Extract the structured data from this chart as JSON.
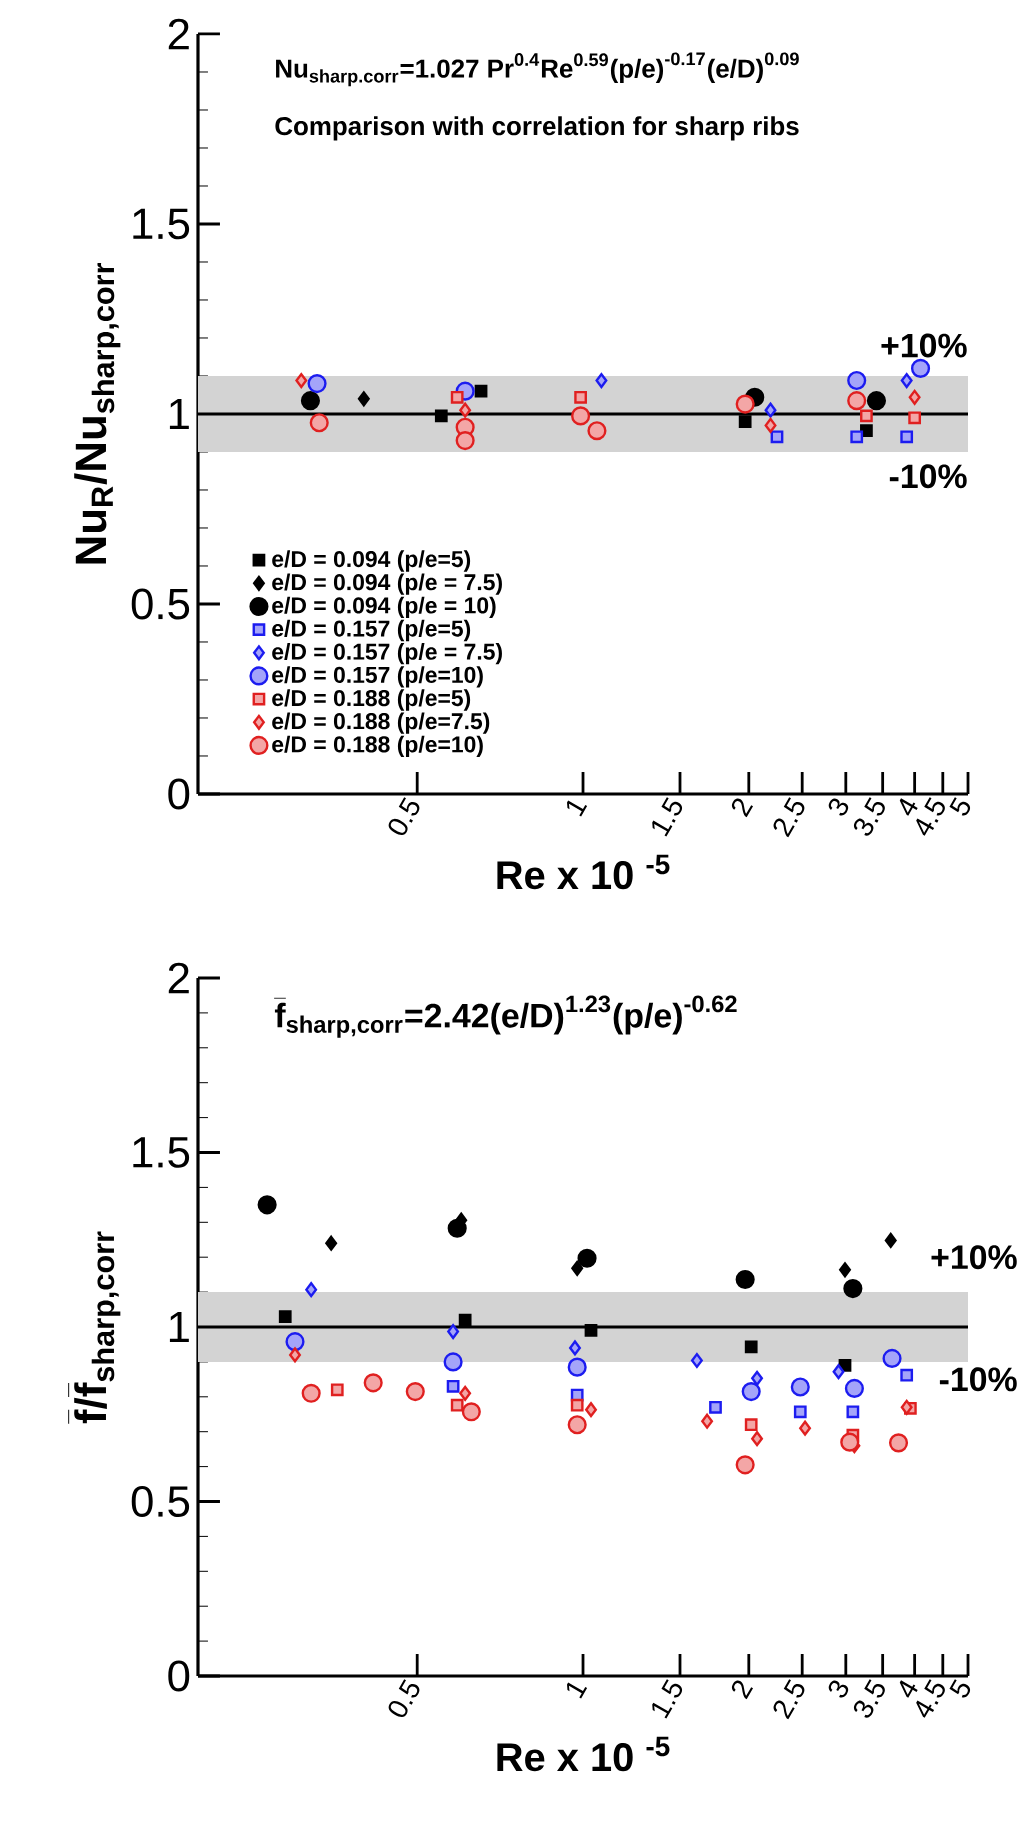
{
  "chart_data": [
    {
      "type": "scatter",
      "title": "\\textbf{Nu}_{\\textbf{sharp.corr}}\\textbf{=1.027 Pr}^{\\textbf{0.4}}\\textbf{Re}^{\\textbf{0.59}}\\textbf{(p/e)}^{\\textbf{-0.17}}\\textbf{(e/D)}^{\\textbf{0.09}}",
      "subtitle": "Comparison with correlation for sharp ribs",
      "xlabel": "Re x 10 $^{-5}$",
      "ylabel": "\\textbf{Nu}_{\\textbf{R}}\\textbf{/Nu}_{\\textbf{sharp,corr}}",
      "log": "x",
      "xlim": [
        0.2,
        5
      ],
      "ylim": [
        0,
        2
      ],
      "xticks": [
        0.5,
        1,
        1.5,
        2,
        2.5,
        3,
        3.5,
        4,
        4.5,
        5
      ],
      "yticks": [
        0,
        0.5,
        1,
        1.5,
        2
      ],
      "legend": "bottom left",
      "bands": [
        {
          "axis": "y",
          "from": 0.9,
          "to": 1.1,
          "color": "#d3d3d3"
        }
      ],
      "ref_lines": [
        {
          "axis": "y",
          "value": 1,
          "color": "#000000"
        }
      ],
      "annotations": [
        "+10%",
        "-10%"
      ],
      "series": [
        {
          "name": "e/D = 0.094 (p/e=5)",
          "color": "#000000",
          "marker": "square",
          "x": [
            0.553,
            0.653,
            1.97,
            3.27
          ],
          "values": [
            0.995,
            1.06,
            0.98,
            0.956
          ]
        },
        {
          "name": "e/D = 0.094 (p/e = 7.5)",
          "color": "#000000",
          "marker": "diamond",
          "x": [
            0.4
          ],
          "values": [
            1.04
          ]
        },
        {
          "name": "e/D = 0.094 (p/e = 10)",
          "color": "#000000",
          "marker": "circle",
          "x": [
            0.32,
            2.05,
            3.41
          ],
          "values": [
            1.035,
            1.044,
            1.035
          ]
        },
        {
          "name": "e/D = 0.157 (p/e=5)",
          "color": "#1c1cf0",
          "marker": "square",
          "x": [
            2.25,
            3.14,
            3.87
          ],
          "values": [
            0.94,
            0.94,
            0.94
          ]
        },
        {
          "name": "e/D = 0.157 (p/e = 7.5)",
          "color": "#1c1cf0",
          "marker": "diamond",
          "x": [
            1.08,
            2.19,
            3.87
          ],
          "values": [
            1.088,
            1.01,
            1.088
          ]
        },
        {
          "name": "e/D = 0.157 (p/e=10)",
          "color": "#1c1cf0",
          "marker": "circle",
          "x": [
            0.329,
            0.611,
            3.14,
            4.1
          ],
          "values": [
            1.08,
            1.06,
            1.088,
            1.12
          ]
        },
        {
          "name": "e/D = 0.188 (p/e=5)",
          "color": "#e02020",
          "marker": "square",
          "x": [
            0.591,
            0.99,
            3.27,
            4.0
          ],
          "values": [
            1.044,
            1.044,
            0.995,
            0.99
          ]
        },
        {
          "name": "e/D = 0.188 (p/e=7.5)",
          "color": "#e02020",
          "marker": "diamond",
          "x": [
            0.308,
            0.611,
            2.19,
            4.0
          ],
          "values": [
            1.088,
            1.01,
            0.97,
            1.044
          ]
        },
        {
          "name": "e/D = 0.188 (p/e=10)",
          "color": "#e02020",
          "marker": "circle",
          "x": [
            0.332,
            0.611,
            0.611,
            0.99,
            1.06,
            1.97,
            3.14
          ],
          "values": [
            0.977,
            0.965,
            0.93,
            0.995,
            0.956,
            1.026,
            1.035
          ]
        }
      ]
    },
    {
      "type": "scatter",
      "title": "\\bar{\\textbf{f}}_{\\textbf{sharp,corr}}\\textbf{=2.42(e/D)}^{\\textbf{1.23}}\\textbf{(p/e)}^{\\textbf{-0.62}}",
      "xlabel": "Re x 10 $^{-5}$",
      "ylabel": "\\bar{\\textbf{f}}\\textbf{/}\\bar{\\textbf{f}}_{\\textbf{sharp,corr}}",
      "log": "x",
      "xlim": [
        0.2,
        5
      ],
      "ylim": [
        0,
        2
      ],
      "xticks": [
        0.5,
        1,
        1.5,
        2,
        2.5,
        3,
        3.5,
        4,
        4.5,
        5
      ],
      "yticks": [
        0,
        0.5,
        1,
        1.5,
        2
      ],
      "bands": [
        {
          "axis": "y",
          "from": 0.9,
          "to": 1.1,
          "color": "#d3d3d3"
        }
      ],
      "ref_lines": [
        {
          "axis": "y",
          "value": 1,
          "color": "#000000"
        }
      ],
      "annotations": [
        "+10%",
        "-10%"
      ],
      "series": [
        {
          "color": "#000000",
          "marker": "square",
          "x": [
            0.288,
            0.611,
            1.034,
            2.02,
            2.99
          ],
          "values": [
            1.03,
            1.02,
            0.99,
            0.943,
            0.89
          ]
        },
        {
          "color": "#000000",
          "marker": "diamond",
          "x": [
            0.349,
            0.601,
            0.976,
            2.99,
            3.62
          ],
          "values": [
            1.24,
            1.306,
            1.168,
            1.164,
            1.248
          ]
        },
        {
          "color": "#000000",
          "marker": "circle",
          "x": [
            0.267,
            0.591,
            1.017,
            1.97,
            3.09
          ],
          "values": [
            1.35,
            1.283,
            1.197,
            1.136,
            1.11
          ]
        },
        {
          "color": "#1c1cf0",
          "marker": "square",
          "x": [
            0.581,
            0.976,
            1.74,
            2.48,
            3.09,
            3.87
          ],
          "values": [
            0.83,
            0.805,
            0.77,
            0.757,
            0.757,
            0.862
          ]
        },
        {
          "color": "#1c1cf0",
          "marker": "diamond",
          "x": [
            0.321,
            0.581,
            0.967,
            1.61,
            2.07,
            2.91
          ],
          "values": [
            1.107,
            0.987,
            0.94,
            0.904,
            0.853,
            0.872
          ]
        },
        {
          "color": "#1c1cf0",
          "marker": "circle",
          "x": [
            0.3,
            0.581,
            0.976,
            2.02,
            2.48,
            3.11,
            3.64
          ],
          "values": [
            0.958,
            0.9,
            0.885,
            0.815,
            0.828,
            0.824,
            0.91
          ]
        },
        {
          "color": "#e02020",
          "marker": "square",
          "x": [
            0.358,
            0.591,
            0.976,
            2.02,
            3.09,
            3.93
          ],
          "values": [
            0.82,
            0.776,
            0.776,
            0.72,
            0.69,
            0.767
          ]
        },
        {
          "color": "#e02020",
          "marker": "diamond",
          "x": [
            0.3,
            0.611,
            1.034,
            1.68,
            2.07,
            2.53,
            3.11,
            3.87
          ],
          "values": [
            0.92,
            0.81,
            0.763,
            0.73,
            0.68,
            0.71,
            0.66,
            0.77
          ]
        },
        {
          "color": "#e02020",
          "marker": "circle",
          "x": [
            0.321,
            0.416,
            0.496,
            0.627,
            0.976,
            1.97,
            3.05,
            3.74
          ],
          "values": [
            0.81,
            0.84,
            0.815,
            0.757,
            0.72,
            0.605,
            0.67,
            0.668
          ]
        }
      ]
    }
  ]
}
